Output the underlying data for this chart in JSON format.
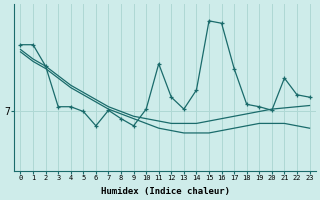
{
  "xlabel": "Humidex (Indice chaleur)",
  "bg_color": "#ceecea",
  "line_color": "#1a6b6b",
  "grid_color": "#afd8d4",
  "ytick_label": "7",
  "ytick_val": 7.0,
  "xlim": [
    -0.5,
    23.5
  ],
  "ylim": [
    4.5,
    11.5
  ],
  "x": [
    0,
    1,
    2,
    3,
    4,
    5,
    6,
    7,
    8,
    9,
    10,
    11,
    12,
    13,
    14,
    15,
    16,
    17,
    18,
    19,
    20,
    21,
    22,
    23
  ],
  "line1_y": [
    9.8,
    9.8,
    8.9,
    7.2,
    7.2,
    7.0,
    6.4,
    7.05,
    6.7,
    6.4,
    7.1,
    9.0,
    7.6,
    7.1,
    7.9,
    10.8,
    10.7,
    8.8,
    7.3,
    7.2,
    7.05,
    8.4,
    7.7,
    7.6
  ],
  "line2_y": [
    9.6,
    9.2,
    8.9,
    8.5,
    8.1,
    7.8,
    7.5,
    7.2,
    7.0,
    6.8,
    6.7,
    6.6,
    6.5,
    6.5,
    6.5,
    6.6,
    6.7,
    6.8,
    6.9,
    7.0,
    7.1,
    7.15,
    7.2,
    7.25
  ],
  "line3_y": [
    9.5,
    9.1,
    8.8,
    8.4,
    8.0,
    7.7,
    7.4,
    7.1,
    6.9,
    6.7,
    6.5,
    6.3,
    6.2,
    6.1,
    6.1,
    6.1,
    6.2,
    6.3,
    6.4,
    6.5,
    6.5,
    6.5,
    6.4,
    6.3
  ]
}
